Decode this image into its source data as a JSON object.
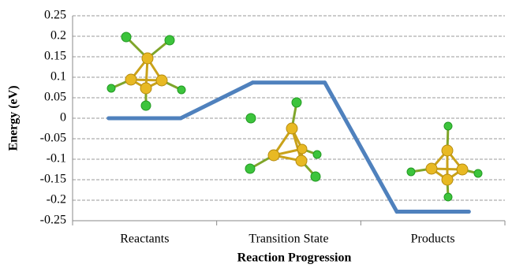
{
  "chart_data": {
    "type": "energy-levels",
    "x_label": "Reaction Progression",
    "y_label": "Energy (eV)",
    "categories": [
      "Reactants",
      "Transition State",
      "Products"
    ],
    "values": [
      0,
      0.087,
      -0.228
    ],
    "color": "#4f81bd",
    "ylim": [
      -0.25,
      0.25
    ],
    "yticks": [
      -0.25,
      -0.2,
      -0.15,
      -0.1,
      -0.05,
      0,
      0.05,
      0.1,
      0.15,
      0.2,
      0.25
    ],
    "grid": true
  }
}
